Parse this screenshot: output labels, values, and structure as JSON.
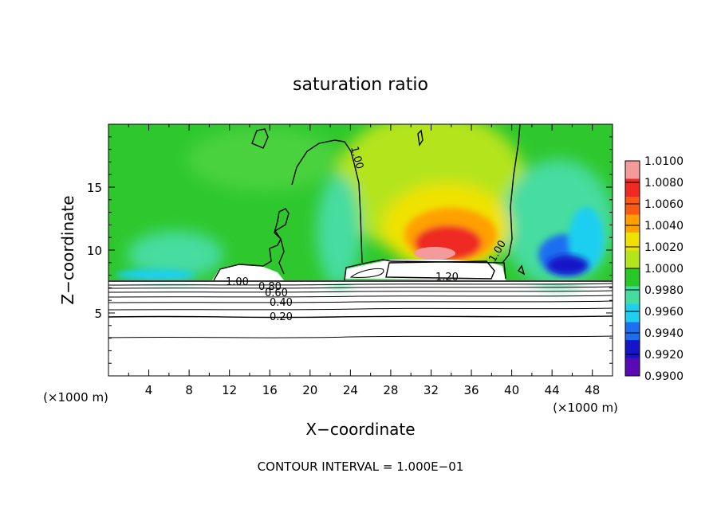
{
  "chart_data": {
    "type": "heatmap",
    "title": "saturation ratio",
    "xlabel": "X−coordinate",
    "ylabel": "Z−coordinate",
    "x_unit_label_left": "(×1000 m)",
    "x_unit_label_right": "(×1000 m)",
    "footer": "CONTOUR INTERVAL = 1.000E−01",
    "xlim": [
      0,
      50
    ],
    "ylim": [
      0,
      20
    ],
    "x_ticks": [
      4,
      8,
      12,
      16,
      20,
      24,
      28,
      32,
      36,
      40,
      44,
      48
    ],
    "y_ticks": [
      5,
      10,
      15
    ],
    "colorbar": {
      "labels": [
        "1.0100",
        "1.0080",
        "1.0060",
        "1.0040",
        "1.0020",
        "1.0000",
        "0.9980",
        "0.9960",
        "0.9940",
        "0.9920",
        "0.9900"
      ],
      "colors": [
        "#f59a9a",
        "#ee2a22",
        "#fb5a14",
        "#ffa000",
        "#f0e200",
        "#b4e41c",
        "#28c828",
        "#46dca0",
        "#1ecff0",
        "#1e6ef0",
        "#1414c8",
        "#5a0ab4"
      ]
    },
    "contour_labels": [
      {
        "text": "1.00",
        "x": 16.5,
        "y": 7.6
      },
      {
        "text": "0.80",
        "x": 18.2,
        "y": 7.2
      },
      {
        "text": "0.60",
        "x": 18.5,
        "y": 6.6
      },
      {
        "text": "0.40",
        "x": 18.5,
        "y": 5.9
      },
      {
        "text": "0.20",
        "x": 18.2,
        "y": 4.7
      },
      {
        "text": "1.20",
        "x": 33.0,
        "y": 8.0
      },
      {
        "text": "1.00",
        "x": 25.0,
        "y": 17.0
      },
      {
        "text": "1.00",
        "x": 39.0,
        "y": 9.8
      }
    ]
  }
}
